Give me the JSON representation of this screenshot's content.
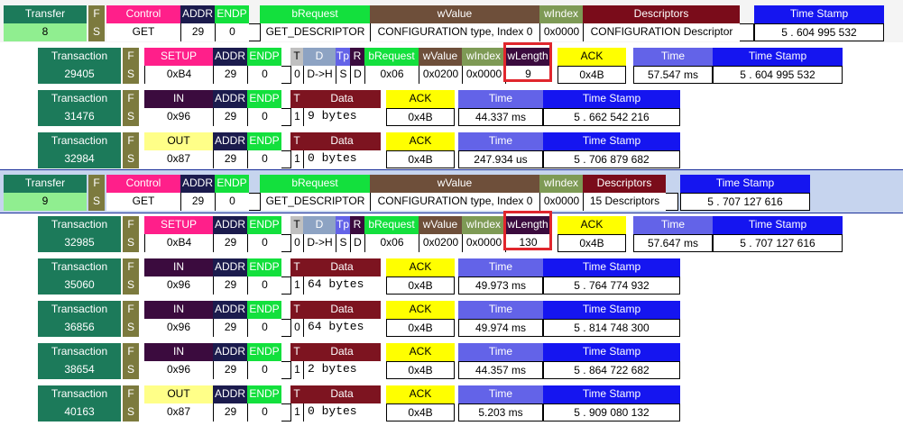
{
  "colors": {
    "green": "#1c7a5a",
    "olive": "#7c7a3e",
    "pink": "#ff1f8a",
    "dark_navy": "#1b1b4d",
    "bright_green": "#13e03d",
    "brown": "#6e4f3a",
    "olive_green": "#7e9a55",
    "dark_red": "#7a0c1a",
    "blue": "#1515f0",
    "yellow": "#ffff00",
    "purple_blue": "#6363e8",
    "dark_purple": "#3b0b3e",
    "yellow_pale": "#ffff88",
    "maroon": "#7d1420",
    "gray_blue": "#8da3c3",
    "light_green": "#90ee90"
  },
  "labels": {
    "transfer": "Transfer",
    "transaction": "Transaction",
    "f": "F",
    "s": "S",
    "control": "Control",
    "addr": "ADDR",
    "endp": "ENDP",
    "brequest": "bRequest",
    "wvalue": "wValue",
    "windex": "wIndex",
    "wlength": "wLength",
    "descriptors": "Descriptors",
    "timestamp": "Time Stamp",
    "time": "Time",
    "t": "T",
    "d": "D",
    "tp": "Tp",
    "r": "R",
    "data": "Data",
    "ack": "ACK",
    "setup": "SETUP",
    "in": "IN",
    "out": "OUT"
  },
  "transfers": [
    {
      "number": "8",
      "request": "GET",
      "addr": "29",
      "endp": "0",
      "brequest": "GET_DESCRIPTOR",
      "wvalue": "CONFIGURATION type, Index 0",
      "windex": "0x0000",
      "descriptors": "CONFIGURATION Descriptor",
      "timestamp": "5 . 604 995 532"
    },
    {
      "number": "9",
      "request": "GET",
      "addr": "29",
      "endp": "0",
      "brequest": "GET_DESCRIPTOR",
      "wvalue": "CONFIGURATION type, Index 0",
      "windex": "0x0000",
      "descriptors": "15 Descriptors",
      "timestamp": "5 . 707 127 616"
    }
  ],
  "setups": [
    {
      "number": "29405",
      "pid": "0xB4",
      "addr": "29",
      "endp": "0",
      "t": "0",
      "d": "D->H",
      "tp": "S",
      "r": "D",
      "brequest": "0x06",
      "wvalue": "0x0200",
      "windex": "0x0000",
      "wlength": "9",
      "ack": "0x4B",
      "time": "57.547 ms",
      "timestamp": "5 . 604 995 532"
    },
    {
      "number": "32985",
      "pid": "0xB4",
      "addr": "29",
      "endp": "0",
      "t": "0",
      "d": "D->H",
      "tp": "S",
      "r": "D",
      "brequest": "0x06",
      "wvalue": "0x0200",
      "windex": "0x0000",
      "wlength": "130",
      "ack": "0x4B",
      "time": "57.647 ms",
      "timestamp": "5 . 707 127 616"
    }
  ],
  "data_txns": [
    {
      "number": "31476",
      "kind": "in",
      "pid": "0x96",
      "addr": "29",
      "endp": "0",
      "t": "1",
      "data": "9 bytes",
      "ack": "0x4B",
      "time": "44.337 ms",
      "timestamp": "5 . 662 542 216"
    },
    {
      "number": "32984",
      "kind": "out",
      "pid": "0x87",
      "addr": "29",
      "endp": "0",
      "t": "1",
      "data": "0 bytes",
      "ack": "0x4B",
      "time": "247.934 us",
      "timestamp": "5 . 706 879 682"
    },
    {
      "number": "35060",
      "kind": "in",
      "pid": "0x96",
      "addr": "29",
      "endp": "0",
      "t": "1",
      "data": "64 bytes",
      "ack": "0x4B",
      "time": "49.973 ms",
      "timestamp": "5 . 764 774 932"
    },
    {
      "number": "36856",
      "kind": "in",
      "pid": "0x96",
      "addr": "29",
      "endp": "0",
      "t": "0",
      "data": "64 bytes",
      "ack": "0x4B",
      "time": "49.974 ms",
      "timestamp": "5 . 814 748 300"
    },
    {
      "number": "38654",
      "kind": "in",
      "pid": "0x96",
      "addr": "29",
      "endp": "0",
      "t": "1",
      "data": "2 bytes",
      "ack": "0x4B",
      "time": "44.357 ms",
      "timestamp": "5 . 864 722 682"
    },
    {
      "number": "40163",
      "kind": "out",
      "pid": "0x87",
      "addr": "29",
      "endp": "0",
      "t": "1",
      "data": "0 bytes",
      "ack": "0x4B",
      "time": "5.203 ms",
      "timestamp": "5 . 909 080 132"
    }
  ]
}
